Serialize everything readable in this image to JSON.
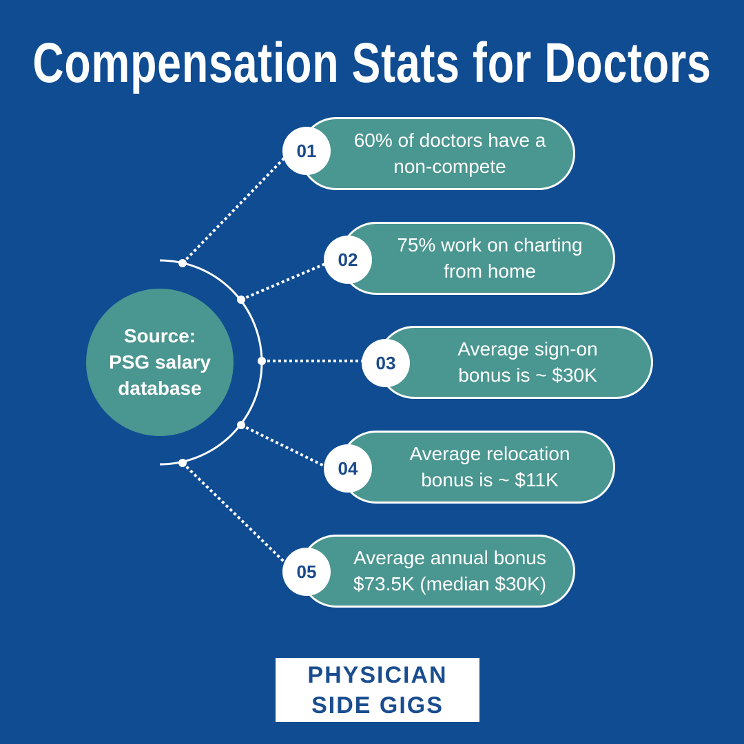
{
  "title": "Compensation Stats for Doctors",
  "source": {
    "line1": "Source:",
    "line2": "PSG salary",
    "line3": "database"
  },
  "stats": [
    {
      "number": "01",
      "line1": "60% of doctors have a",
      "line2": "non-compete"
    },
    {
      "number": "02",
      "line1": "75% work on charting",
      "line2": "from home"
    },
    {
      "number": "03",
      "line1": "Average sign-on",
      "line2": "bonus is ~ $30K"
    },
    {
      "number": "04",
      "line1": "Average relocation",
      "line2": "bonus is ~ $11K"
    },
    {
      "number": "05",
      "line1": "Average annual bonus",
      "line2": "$73.5K (median $30K)"
    }
  ],
  "logo": {
    "line1": "PHYSICIAN",
    "line2": "SIDE GIGS"
  },
  "colors": {
    "background": "#0f4c92",
    "teal": "#4a9690",
    "text_dark": "#1a4a8a"
  }
}
